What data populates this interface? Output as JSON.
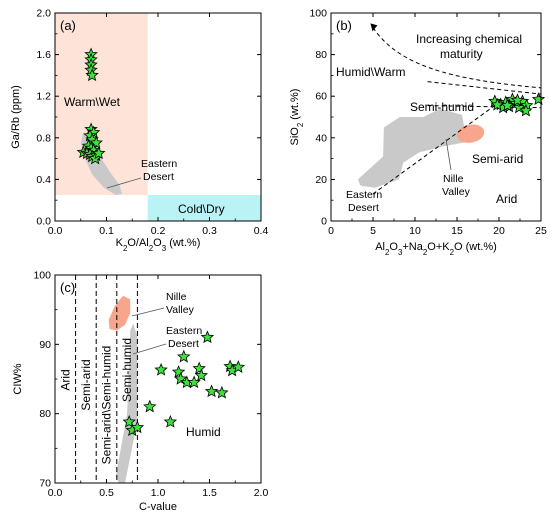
{
  "chart_data": [
    {
      "panel": "(a)",
      "type": "scatter",
      "xlabel_parts": [
        "K",
        "2",
        "O/Al",
        "2",
        "O",
        "3",
        "  (wt.%)"
      ],
      "ylabel": "Ga/Rb (ppm)",
      "xlim": [
        0,
        0.4
      ],
      "ylim": [
        0,
        2.0
      ],
      "xticks": [
        "0.0",
        "0.1",
        "0.2",
        "0.3",
        "0.4"
      ],
      "yticks": [
        "0.0",
        "0.4",
        "0.8",
        "1.2",
        "1.6",
        "2.0"
      ],
      "regions": [
        {
          "label": "Warm\\Wet",
          "x": [
            0,
            0.18
          ],
          "y": [
            0.25,
            2.0
          ],
          "color": "#fde3d8"
        },
        {
          "label": "Cold\\Dry",
          "x": [
            0.18,
            0.4
          ],
          "y": [
            0,
            0.25
          ],
          "color": "#b9f3f5"
        }
      ],
      "field_label": [
        "Eastern",
        "Desert"
      ],
      "field_color": "#c9c9c9",
      "points": [
        [
          0.07,
          1.6
        ],
        [
          0.07,
          1.55
        ],
        [
          0.07,
          1.5
        ],
        [
          0.07,
          1.45
        ],
        [
          0.072,
          1.4
        ],
        [
          0.07,
          0.88
        ],
        [
          0.075,
          0.85
        ],
        [
          0.068,
          0.82
        ],
        [
          0.072,
          0.78
        ],
        [
          0.08,
          0.75
        ],
        [
          0.065,
          0.72
        ],
        [
          0.07,
          0.7
        ],
        [
          0.075,
          0.68
        ],
        [
          0.055,
          0.66
        ],
        [
          0.062,
          0.65
        ],
        [
          0.068,
          0.64
        ],
        [
          0.072,
          0.62
        ],
        [
          0.08,
          0.63
        ],
        [
          0.078,
          0.6
        ],
        [
          0.085,
          0.65
        ]
      ],
      "marker_color": "#3de23d"
    },
    {
      "panel": "(b)",
      "type": "scatter",
      "xlabel_parts": [
        "Al",
        "2",
        "O",
        "3",
        "+Na",
        "2",
        "O+K",
        "2",
        "O (wt.%)"
      ],
      "ylabel_parts": [
        "SiO",
        "2",
        " (wt.%)"
      ],
      "xlim": [
        0,
        25
      ],
      "ylim": [
        0,
        100
      ],
      "xticks": [
        "0",
        "5",
        "10",
        "15",
        "20",
        "25"
      ],
      "yticks": [
        "0",
        "20",
        "40",
        "60",
        "80",
        "100"
      ],
      "annotations": [
        "Increasing chemical",
        "maturity",
        "Humid\\Warm",
        "Semi-humid",
        "Semi-arid",
        "Arid"
      ],
      "field_labels": {
        "eastern": [
          "Eastern",
          "Desert"
        ],
        "nille": [
          "Nille",
          "Valley"
        ]
      },
      "field_colors": {
        "eastern": "#c9c9c9",
        "nille": "#f7a58c"
      },
      "points": [
        [
          19.5,
          57.5
        ],
        [
          20.2,
          56
        ],
        [
          20.8,
          57
        ],
        [
          21.2,
          55
        ],
        [
          21.6,
          58.5
        ],
        [
          22.0,
          56.5
        ],
        [
          22.4,
          54.5
        ],
        [
          22.8,
          57.5
        ],
        [
          23.3,
          55.5
        ],
        [
          23.2,
          53
        ],
        [
          20.5,
          54.5
        ],
        [
          21.0,
          55.5
        ],
        [
          22.2,
          58
        ],
        [
          19.8,
          55.8
        ],
        [
          24.7,
          58.5
        ]
      ],
      "marker_color": "#3de23d"
    },
    {
      "panel": "(c)",
      "type": "scatter",
      "xlabel": "C-value",
      "ylabel": "CIW%",
      "xlim": [
        0,
        2.0
      ],
      "ylim": [
        70,
        100
      ],
      "xticks": [
        "0.0",
        "0.5",
        "1.0",
        "1.5",
        "2.0"
      ],
      "yticks": [
        "70",
        "80",
        "90",
        "100"
      ],
      "boundaries": [
        0.2,
        0.4,
        0.6,
        0.8
      ],
      "zone_labels": [
        "Arid",
        "Semi-arid",
        "Semi-arid\\Semi-humid",
        "Semi-humid",
        "Humid"
      ],
      "field_labels": {
        "nille": [
          "Nille",
          "Valley"
        ],
        "eastern": [
          "Eastern",
          "Desert"
        ]
      },
      "field_colors": {
        "nille": "#f7a58c",
        "eastern": "#c9c9c9"
      },
      "points": [
        [
          0.72,
          78.8
        ],
        [
          0.75,
          77.6
        ],
        [
          0.8,
          78
        ],
        [
          0.92,
          81
        ],
        [
          1.03,
          86.3
        ],
        [
          1.12,
          78.8
        ],
        [
          1.2,
          86
        ],
        [
          1.22,
          85
        ],
        [
          1.25,
          88.2
        ],
        [
          1.28,
          84.5
        ],
        [
          1.35,
          84.5
        ],
        [
          1.4,
          86.5
        ],
        [
          1.42,
          85.5
        ],
        [
          1.48,
          91
        ],
        [
          1.52,
          83.2
        ],
        [
          1.62,
          83
        ],
        [
          1.7,
          86.8
        ],
        [
          1.72,
          86.2
        ],
        [
          1.78,
          86.7
        ]
      ],
      "marker_color": "#3de23d"
    }
  ]
}
